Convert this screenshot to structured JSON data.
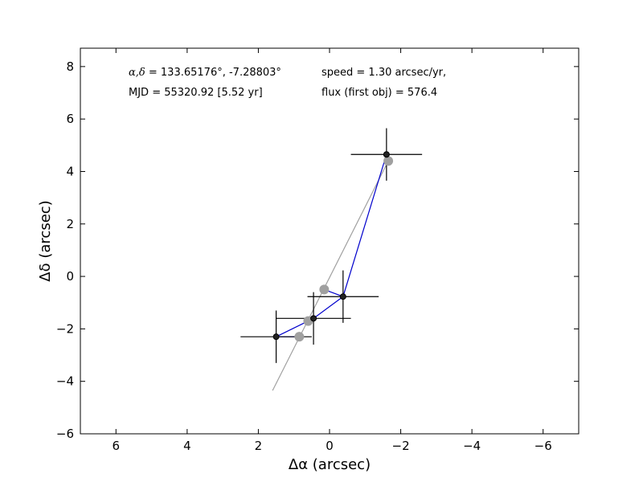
{
  "chart_data": {
    "type": "scatter",
    "xlabel": "Δα (arcsec)",
    "ylabel": "Δδ (arcsec)",
    "xlim": [
      7,
      -7
    ],
    "ylim": [
      -6,
      8.7
    ],
    "x_ticks": [
      6,
      4,
      2,
      0,
      -2,
      -4,
      -6
    ],
    "y_ticks": [
      -6,
      -4,
      -2,
      0,
      2,
      4,
      6,
      8
    ],
    "x_tick_labels": [
      "6",
      "4",
      "2",
      "0",
      "−2",
      "−4",
      "−6"
    ],
    "y_tick_labels": [
      "−6",
      "−4",
      "−2",
      "0",
      "2",
      "4",
      "6",
      "8"
    ],
    "grid": false,
    "annotations": {
      "radec_prefix": "α,δ",
      "radec_value": "= 133.65176°, -7.28803°",
      "mjd": "MJD = 55320.92 [5.52 yr]",
      "speed": "speed = 1.30 arcsec/yr,",
      "flux": "flux (first obj) = 576.4"
    },
    "series": [
      {
        "kind": "observed",
        "color": "#000000",
        "line_color": "#0000cc",
        "points": [
          {
            "x": 1.5,
            "y": -2.3,
            "xerr": 1.0,
            "yerr": 1.0
          },
          {
            "x": 0.45,
            "y": -1.6,
            "xerr": 1.05,
            "yerr": 1.0
          },
          {
            "x": -0.38,
            "y": -0.77,
            "xerr": 1.0,
            "yerr": 1.0
          },
          {
            "x": -1.6,
            "y": 4.65,
            "xerr": 1.0,
            "yerr": 1.0
          }
        ]
      },
      {
        "kind": "model",
        "color": "#a0a0a0",
        "points": [
          {
            "x": 0.85,
            "y": -2.3
          },
          {
            "x": 0.6,
            "y": -1.7
          },
          {
            "x": 0.15,
            "y": -0.5
          },
          {
            "x": -1.65,
            "y": 4.4
          }
        ]
      }
    ],
    "fit_line": {
      "color": "#a0a0a0",
      "from": {
        "x": 1.6,
        "y": -4.35
      },
      "to": {
        "x": -1.65,
        "y": 4.4
      }
    }
  }
}
